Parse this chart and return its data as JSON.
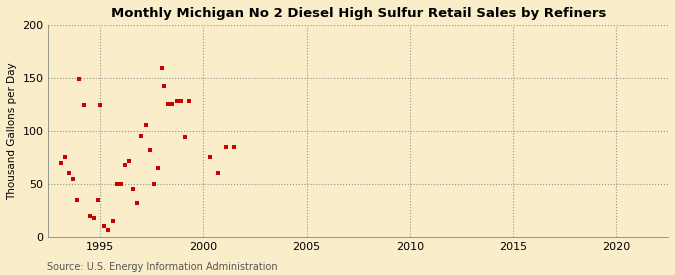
{
  "title": "Monthly Michigan No 2 Diesel High Sulfur Retail Sales by Refiners",
  "ylabel": "Thousand Gallons per Day",
  "source": "Source: U.S. Energy Information Administration",
  "background_color": "#faeeca",
  "plot_bg_color": "#f5f0e0",
  "point_color": "#cc0000",
  "xlim": [
    1992.5,
    2022.5
  ],
  "ylim": [
    0,
    200
  ],
  "yticks": [
    0,
    50,
    100,
    150,
    200
  ],
  "xticks": [
    1995,
    2000,
    2005,
    2010,
    2015,
    2020
  ],
  "data_x": [
    1993.1,
    1993.3,
    1993.5,
    1993.7,
    1993.9,
    1994.0,
    1994.2,
    1994.5,
    1994.7,
    1994.9,
    1995.0,
    1995.2,
    1995.4,
    1995.6,
    1995.8,
    1996.0,
    1996.2,
    1996.4,
    1996.6,
    1996.8,
    1997.0,
    1997.2,
    1997.4,
    1997.6,
    1997.8,
    1998.0,
    1998.1,
    1998.3,
    1998.5,
    1998.7,
    1998.9,
    1999.1,
    1999.3,
    2000.3,
    2000.7,
    2001.1,
    2001.5
  ],
  "data_y": [
    70,
    75,
    60,
    55,
    35,
    149,
    125,
    20,
    18,
    35,
    125,
    10,
    6,
    15,
    50,
    50,
    68,
    72,
    45,
    32,
    95,
    106,
    82,
    50,
    65,
    160,
    143,
    126,
    126,
    128,
    128,
    94,
    128,
    75,
    60,
    85,
    85
  ]
}
